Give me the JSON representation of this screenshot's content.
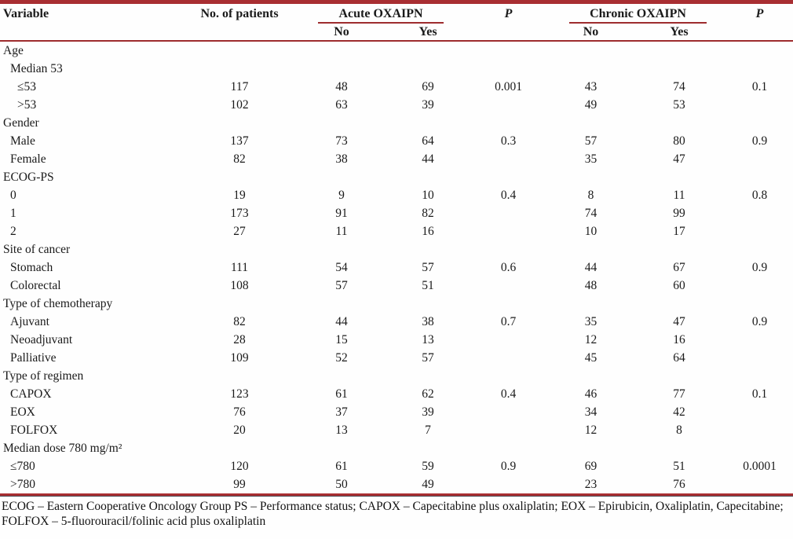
{
  "colors": {
    "rule_red": "#a82e32",
    "thin_rule_red": "#9e2c2e",
    "text": "#1a1a1a",
    "background": "#fefefe"
  },
  "table": {
    "headers": {
      "variable": "Variable",
      "patients": "No. of patients",
      "acute_group": "Acute OXAIPN",
      "chronic_group": "Chronic OXAIPN",
      "p_acute": "P",
      "p_chronic": "P",
      "acute_no": "No",
      "acute_yes": "Yes",
      "chronic_no": "No",
      "chronic_yes": "Yes"
    },
    "rows": [
      {
        "label": "Age",
        "indent": 0,
        "cells": [
          "",
          "",
          "",
          "",
          "",
          "",
          ""
        ]
      },
      {
        "label": "Median 53",
        "indent": 1,
        "cells": [
          "",
          "",
          "",
          "",
          "",
          "",
          ""
        ]
      },
      {
        "label": "≤53",
        "indent": 2,
        "cells": [
          "117",
          "48",
          "69",
          "0.001",
          "43",
          "74",
          "0.1"
        ]
      },
      {
        "label": ">53",
        "indent": 2,
        "cells": [
          "102",
          "63",
          "39",
          "",
          "49",
          "53",
          ""
        ]
      },
      {
        "label": "Gender",
        "indent": 0,
        "cells": [
          "",
          "",
          "",
          "",
          "",
          "",
          ""
        ]
      },
      {
        "label": "Male",
        "indent": 1,
        "cells": [
          "137",
          "73",
          "64",
          "0.3",
          "57",
          "80",
          "0.9"
        ]
      },
      {
        "label": "Female",
        "indent": 1,
        "cells": [
          "82",
          "38",
          "44",
          "",
          "35",
          "47",
          ""
        ]
      },
      {
        "label": "ECOG-PS",
        "indent": 0,
        "cells": [
          "",
          "",
          "",
          "",
          "",
          "",
          ""
        ]
      },
      {
        "label": "0",
        "indent": 1,
        "cells": [
          "19",
          "9",
          "10",
          "0.4",
          "8",
          "11",
          "0.8"
        ]
      },
      {
        "label": "1",
        "indent": 1,
        "cells": [
          "173",
          "91",
          "82",
          "",
          "74",
          "99",
          ""
        ]
      },
      {
        "label": "2",
        "indent": 1,
        "cells": [
          "27",
          "11",
          "16",
          "",
          "10",
          "17",
          ""
        ]
      },
      {
        "label": "Site of cancer",
        "indent": 0,
        "cells": [
          "",
          "",
          "",
          "",
          "",
          "",
          ""
        ]
      },
      {
        "label": "Stomach",
        "indent": 1,
        "cells": [
          "111",
          "54",
          "57",
          "0.6",
          "44",
          "67",
          "0.9"
        ]
      },
      {
        "label": "Colorectal",
        "indent": 1,
        "cells": [
          "108",
          "57",
          "51",
          "",
          "48",
          "60",
          ""
        ]
      },
      {
        "label": "Type of chemotherapy",
        "indent": 0,
        "cells": [
          "",
          "",
          "",
          "",
          "",
          "",
          ""
        ]
      },
      {
        "label": "Ajuvant",
        "indent": 1,
        "cells": [
          "82",
          "44",
          "38",
          "0.7",
          "35",
          "47",
          "0.9"
        ]
      },
      {
        "label": "Neoadjuvant",
        "indent": 1,
        "cells": [
          "28",
          "15",
          "13",
          "",
          "12",
          "16",
          ""
        ]
      },
      {
        "label": "Palliative",
        "indent": 1,
        "cells": [
          "109",
          "52",
          "57",
          "",
          "45",
          "64",
          ""
        ]
      },
      {
        "label": "Type of regimen",
        "indent": 0,
        "cells": [
          "",
          "",
          "",
          "",
          "",
          "",
          ""
        ]
      },
      {
        "label": "CAPOX",
        "indent": 1,
        "cells": [
          "123",
          "61",
          "62",
          "0.4",
          "46",
          "77",
          "0.1"
        ]
      },
      {
        "label": "EOX",
        "indent": 1,
        "cells": [
          "76",
          "37",
          "39",
          "",
          "34",
          "42",
          ""
        ]
      },
      {
        "label": "FOLFOX",
        "indent": 1,
        "cells": [
          "20",
          "13",
          "7",
          "",
          "12",
          "8",
          ""
        ]
      },
      {
        "label": "Median dose 780 mg/m²",
        "indent": 0,
        "cells": [
          "",
          "",
          "",
          "",
          "",
          "",
          ""
        ]
      },
      {
        "label": "≤780",
        "indent": 1,
        "cells": [
          "120",
          "61",
          "59",
          "0.9",
          "69",
          "51",
          "0.0001"
        ]
      },
      {
        "label": ">780",
        "indent": 1,
        "cells": [
          "99",
          "50",
          "49",
          "",
          "23",
          "76",
          ""
        ]
      }
    ]
  },
  "footnote": "ECOG – Eastern Cooperative Oncology Group PS – Performance status; CAPOX – Capecitabine plus oxaliplatin; EOX – Epirubicin, Oxaliplatin, Capecitabine; FOLFOX – 5-fluorouracil/folinic acid plus oxaliplatin"
}
